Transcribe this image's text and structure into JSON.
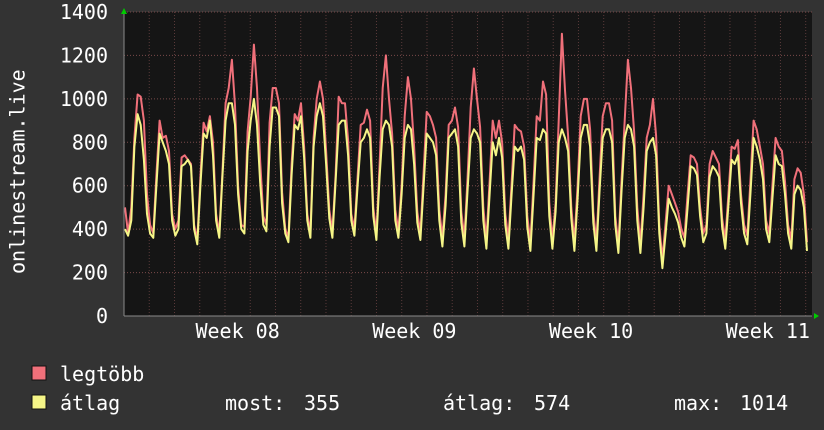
{
  "chart_data": {
    "type": "line",
    "ylabel": "onlinestream.live",
    "ylim": [
      0,
      1400
    ],
    "y_ticks": [
      0,
      200,
      400,
      600,
      800,
      1000,
      1200,
      1400
    ],
    "x_labels": [
      "Week 08",
      "Week 09",
      "Week 10",
      "Week 11"
    ],
    "grid": true,
    "samples_per_day": 8,
    "series": [
      {
        "name": "legtöbb",
        "color": "#f0707a",
        "values": [
          500,
          380,
          500,
          820,
          1020,
          1010,
          900,
          560,
          420,
          380,
          650,
          900,
          820,
          830,
          760,
          470,
          400,
          440,
          730,
          740,
          720,
          700,
          420,
          350,
          640,
          890,
          850,
          920,
          800,
          470,
          380,
          660,
          980,
          1050,
          1180,
          970,
          600,
          420,
          410,
          850,
          1010,
          1250,
          1050,
          720,
          460,
          420,
          890,
          1050,
          1050,
          980,
          570,
          400,
          360,
          700,
          930,
          900,
          980,
          780,
          470,
          380,
          820,
          1000,
          1080,
          1000,
          760,
          490,
          390,
          650,
          1010,
          980,
          980,
          810,
          470,
          400,
          640,
          880,
          890,
          950,
          900,
          500,
          380,
          700,
          1050,
          1200,
          1000,
          840,
          490,
          390,
          600,
          920,
          1100,
          1000,
          780,
          480,
          380,
          660,
          940,
          920,
          880,
          820,
          490,
          360,
          560,
          880,
          900,
          960,
          870,
          480,
          360,
          640,
          960,
          1140,
          1000,
          870,
          500,
          350,
          620,
          900,
          820,
          900,
          800,
          470,
          350,
          610,
          880,
          860,
          850,
          780,
          460,
          340,
          620,
          920,
          900,
          1080,
          1020,
          520,
          350,
          520,
          900,
          1300,
          1040,
          830,
          500,
          340,
          600,
          920,
          1000,
          1000,
          860,
          480,
          340,
          640,
          920,
          980,
          980,
          900,
          460,
          330,
          630,
          900,
          1180,
          1050,
          850,
          500,
          330,
          560,
          820,
          880,
          1000,
          830,
          420,
          260,
          430,
          600,
          560,
          520,
          480,
          400,
          360,
          560,
          740,
          730,
          700,
          500,
          380,
          420,
          700,
          760,
          730,
          700,
          450,
          350,
          560,
          780,
          770,
          810,
          560,
          420,
          370,
          620,
          900,
          860,
          780,
          700,
          440,
          380,
          600,
          820,
          780,
          760,
          620,
          420,
          350,
          630,
          680,
          660,
          560,
          340
        ]
      },
      {
        "name": "átlag",
        "color": "#f5f587",
        "values": [
          400,
          370,
          440,
          780,
          930,
          880,
          720,
          470,
          380,
          360,
          600,
          840,
          800,
          760,
          700,
          440,
          370,
          400,
          690,
          700,
          720,
          690,
          400,
          330,
          600,
          840,
          820,
          900,
          740,
          440,
          360,
          640,
          900,
          980,
          980,
          880,
          560,
          400,
          380,
          760,
          900,
          1000,
          880,
          620,
          420,
          390,
          780,
          960,
          960,
          920,
          520,
          380,
          340,
          650,
          880,
          860,
          920,
          730,
          440,
          360,
          780,
          920,
          980,
          920,
          700,
          450,
          360,
          620,
          880,
          900,
          900,
          740,
          440,
          370,
          600,
          800,
          820,
          860,
          820,
          460,
          350,
          640,
          860,
          900,
          880,
          780,
          440,
          360,
          560,
          820,
          880,
          860,
          700,
          430,
          350,
          600,
          840,
          820,
          800,
          740,
          440,
          320,
          510,
          820,
          840,
          860,
          780,
          430,
          320,
          580,
          820,
          860,
          840,
          800,
          440,
          310,
          560,
          800,
          740,
          820,
          730,
          420,
          310,
          560,
          780,
          760,
          780,
          720,
          410,
          300,
          560,
          820,
          810,
          860,
          840,
          460,
          310,
          480,
          800,
          860,
          820,
          760,
          450,
          300,
          540,
          820,
          880,
          880,
          780,
          430,
          300,
          580,
          820,
          860,
          860,
          800,
          420,
          290,
          580,
          820,
          880,
          860,
          780,
          440,
          290,
          500,
          760,
          800,
          820,
          740,
          380,
          220,
          380,
          540,
          500,
          470,
          430,
          360,
          320,
          500,
          690,
          680,
          650,
          460,
          340,
          380,
          640,
          690,
          670,
          640,
          410,
          310,
          510,
          720,
          700,
          740,
          520,
          380,
          330,
          560,
          820,
          780,
          720,
          630,
          400,
          340,
          540,
          740,
          700,
          690,
          560,
          380,
          310,
          560,
          600,
          580,
          500,
          300
        ]
      }
    ],
    "legend": {
      "items": [
        {
          "label": "legtöbb",
          "color": "#f0707a"
        },
        {
          "label": "átlag",
          "color": "#f5f587"
        }
      ],
      "stats": {
        "most_label": "most:",
        "most_value": "355",
        "atlag_label": "átlag:",
        "atlag_value": "574",
        "max_label": "max:",
        "max_value": "1014"
      }
    }
  }
}
